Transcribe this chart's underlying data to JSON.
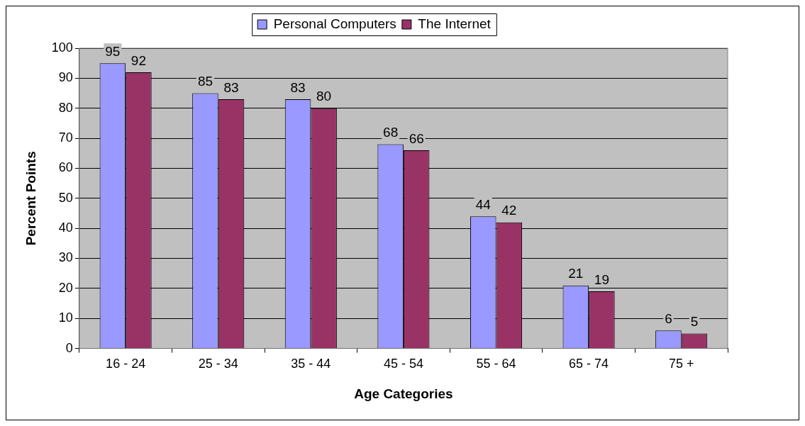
{
  "chart_data": {
    "type": "bar",
    "xlabel": "Age Categories",
    "ylabel": "Percent Points",
    "categories": [
      "16 - 24",
      "25 - 34",
      "35 - 44",
      "45 - 54",
      "55 - 64",
      "65 - 74",
      "75 +"
    ],
    "series": [
      {
        "name": "Personal Computers",
        "color": "#9999ff",
        "values": [
          95,
          85,
          83,
          68,
          44,
          21,
          6
        ]
      },
      {
        "name": "The Internet",
        "color": "#993366",
        "values": [
          92,
          83,
          80,
          66,
          42,
          19,
          5
        ]
      }
    ],
    "ylim": [
      0,
      100
    ],
    "yticks": [
      0,
      10,
      20,
      30,
      40,
      50,
      60,
      70,
      80,
      90,
      100
    ],
    "grid": "y",
    "legend": "top",
    "data_labels": true
  }
}
